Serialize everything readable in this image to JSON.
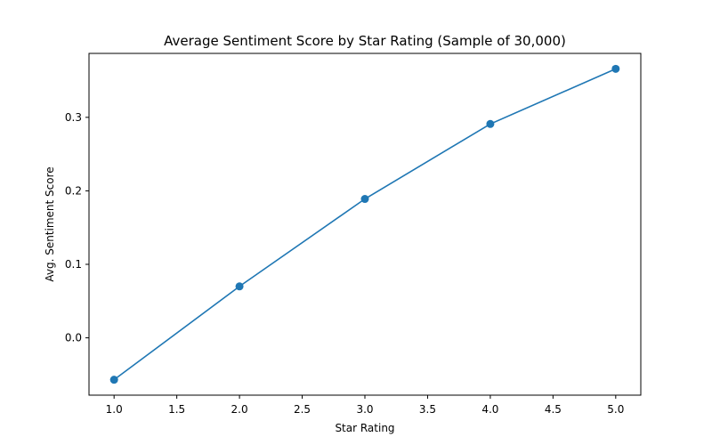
{
  "chart_data": {
    "type": "line",
    "title": "Average Sentiment Score by Star Rating (Sample of 30,000)",
    "xlabel": "Star Rating",
    "ylabel": "Avg. Sentiment Score",
    "xlim": [
      0.8,
      5.2
    ],
    "ylim": [
      -0.078,
      0.387
    ],
    "xticks": [
      1.0,
      1.5,
      2.0,
      2.5,
      3.0,
      3.5,
      4.0,
      4.5,
      5.0
    ],
    "xtick_labels": [
      "1.0",
      "1.5",
      "2.0",
      "2.5",
      "3.0",
      "3.5",
      "4.0",
      "4.5",
      "5.0"
    ],
    "yticks": [
      0.0,
      0.1,
      0.2,
      0.3
    ],
    "ytick_labels": [
      "0.0",
      "0.1",
      "0.2",
      "0.3"
    ],
    "grid": false,
    "series": [
      {
        "x": [
          1,
          2,
          3,
          4,
          5
        ],
        "y": [
          -0.057,
          0.07,
          0.189,
          0.291,
          0.366
        ],
        "color": "#1f77b4",
        "marker": "circle"
      }
    ]
  }
}
